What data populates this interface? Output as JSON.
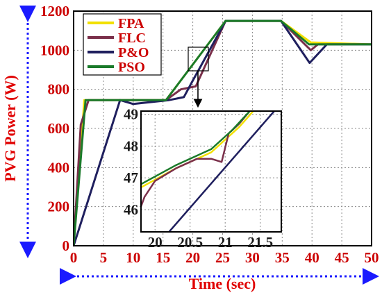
{
  "chart_data": {
    "type": "line",
    "xlabel": "Time (sec)",
    "ylabel": "PVG Power (W)",
    "xlim": [
      0,
      50
    ],
    "ylim": [
      0,
      1200
    ],
    "xticks": [
      "0",
      "5",
      "10",
      "15",
      "20",
      "25",
      "30",
      "35",
      "40",
      "45",
      "50"
    ],
    "yticks": [
      "0",
      "200",
      "400",
      "600",
      "800",
      "1000",
      "1200"
    ],
    "grid": true,
    "legend_position": "top-left",
    "series": [
      {
        "name": "FPA",
        "color": "#f2e000",
        "points": [
          [
            0,
            0
          ],
          [
            1.8,
            745
          ],
          [
            15.5,
            745
          ],
          [
            25.5,
            1150
          ],
          [
            34.8,
            1150
          ],
          [
            39.8,
            1040
          ],
          [
            50,
            1030
          ]
        ]
      },
      {
        "name": "FLC",
        "color": "#7a2f4a",
        "points": [
          [
            0,
            0
          ],
          [
            1.2,
            620
          ],
          [
            2.5,
            745
          ],
          [
            15.5,
            745
          ],
          [
            18,
            800
          ],
          [
            20.5,
            815
          ],
          [
            25.5,
            1150
          ],
          [
            34.8,
            1150
          ],
          [
            39.8,
            1000
          ],
          [
            41,
            1030
          ],
          [
            50,
            1030
          ]
        ]
      },
      {
        "name": "P&O",
        "color": "#1f1f5e",
        "points": [
          [
            0,
            0
          ],
          [
            7.8,
            745
          ],
          [
            10,
            725
          ],
          [
            16,
            745
          ],
          [
            18.5,
            760
          ],
          [
            20,
            845
          ],
          [
            21,
            900
          ],
          [
            25.5,
            1150
          ],
          [
            34.8,
            1150
          ],
          [
            39.6,
            935
          ],
          [
            42.5,
            1030
          ],
          [
            50,
            1030
          ]
        ]
      },
      {
        "name": "PSO",
        "color": "#1a7a2a",
        "points": [
          [
            0,
            0
          ],
          [
            2,
            745
          ],
          [
            15.5,
            745
          ],
          [
            25.5,
            1150
          ],
          [
            34.8,
            1150
          ],
          [
            39.5,
            1030
          ],
          [
            50,
            1030
          ]
        ]
      }
    ],
    "inset": {
      "xlim": [
        19.8,
        21.8
      ],
      "ylim": [
        45.3,
        49.1
      ],
      "xticks": [
        "20",
        "20.5",
        "21",
        "21.5"
      ],
      "yticks": [
        "46",
        "47",
        "48",
        "49"
      ],
      "series": [
        {
          "name": "FPA",
          "points": [
            [
              19.8,
              46.7
            ],
            [
              20.3,
              47.3
            ],
            [
              20.8,
              47.8
            ],
            [
              21.2,
              48.6
            ],
            [
              21.4,
              49.1
            ]
          ]
        },
        {
          "name": "FLC",
          "points": [
            [
              19.8,
              46.1
            ],
            [
              19.85,
              46.4
            ],
            [
              20,
              46.9
            ],
            [
              20.3,
              47.3
            ],
            [
              20.6,
              47.6
            ],
            [
              20.8,
              47.6
            ],
            [
              20.95,
              47.5
            ],
            [
              21.05,
              48.4
            ],
            [
              21.2,
              48.7
            ],
            [
              21.35,
              49.1
            ]
          ]
        },
        {
          "name": "P&O",
          "points": [
            [
              20.2,
              45.3
            ],
            [
              21.7,
              49.1
            ]
          ]
        },
        {
          "name": "PSO",
          "points": [
            [
              19.8,
              46.8
            ],
            [
              20.3,
              47.4
            ],
            [
              20.8,
              47.9
            ],
            [
              21.1,
              48.5
            ],
            [
              21.35,
              49.1
            ]
          ]
        }
      ]
    }
  }
}
